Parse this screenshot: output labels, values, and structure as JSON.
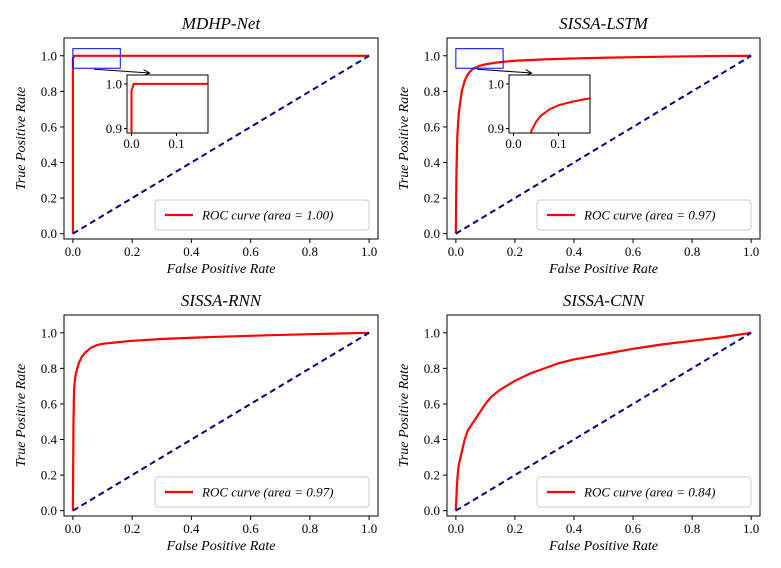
{
  "figure": {
    "legend_label_prefix": "ROC curve (area = "
  },
  "chart_data": [
    {
      "type": "line",
      "title": "MDHP-Net",
      "xlabel": "False Positive Rate",
      "ylabel": "True Positive Rate",
      "xlim": [
        -0.03,
        1.03
      ],
      "ylim": [
        -0.03,
        1.1
      ],
      "xticks": [
        0.0,
        0.2,
        0.4,
        0.6,
        0.8,
        1.0
      ],
      "xtick_labels": [
        "0.0",
        "0.2",
        "0.4",
        "0.6",
        "0.8",
        "1.0"
      ],
      "yticks": [
        0.0,
        0.2,
        0.4,
        0.6,
        0.8,
        1.0
      ],
      "ytick_labels": [
        "0.0",
        "0.2",
        "0.4",
        "0.6",
        "0.8",
        "1.0"
      ],
      "legend": "lower right",
      "legend_text": "ROC curve (area = 1.00)",
      "auc": "1.00",
      "series": [
        {
          "name": "ROC curve",
          "color": "#ff0000",
          "style": "solid",
          "x": [
            0.0,
            0.0,
            0.005,
            1.0
          ],
          "y": [
            0.0,
            0.985,
            1.0,
            1.0
          ]
        },
        {
          "name": "chance",
          "color": "#000080",
          "style": "dashed",
          "x": [
            0.0,
            1.0
          ],
          "y": [
            0.0,
            1.0
          ]
        }
      ],
      "inset": {
        "xlim": [
          -0.01,
          0.17
        ],
        "ylim": [
          0.89,
          1.02
        ],
        "xticks": [
          0.0,
          0.1
        ],
        "xtick_labels": [
          "0.0",
          "0.1"
        ],
        "yticks": [
          0.9,
          1.0
        ],
        "ytick_labels": [
          "0.9",
          "1.0"
        ],
        "zoom_box": {
          "x": [
            0.0,
            0.16
          ],
          "y": [
            0.93,
            1.04
          ]
        }
      }
    },
    {
      "type": "line",
      "title": "SISSA-LSTM",
      "xlabel": "False Positive Rate",
      "ylabel": "True Positive Rate",
      "xlim": [
        -0.03,
        1.03
      ],
      "ylim": [
        -0.03,
        1.1
      ],
      "xticks": [
        0.0,
        0.2,
        0.4,
        0.6,
        0.8,
        1.0
      ],
      "xtick_labels": [
        "0.0",
        "0.2",
        "0.4",
        "0.6",
        "0.8",
        "1.0"
      ],
      "yticks": [
        0.0,
        0.2,
        0.4,
        0.6,
        0.8,
        1.0
      ],
      "ytick_labels": [
        "0.0",
        "0.2",
        "0.4",
        "0.6",
        "0.8",
        "1.0"
      ],
      "legend": "lower right",
      "legend_text": "ROC curve (area = 0.97)",
      "auc": "0.97",
      "series": [
        {
          "name": "ROC curve",
          "color": "#ff0000",
          "style": "solid",
          "x": [
            0.0,
            0.002,
            0.005,
            0.01,
            0.02,
            0.03,
            0.04,
            0.05,
            0.06,
            0.08,
            0.1,
            0.13,
            0.16,
            0.2,
            0.3,
            0.4,
            0.5,
            0.6,
            0.7,
            0.8,
            0.9,
            1.0
          ],
          "y": [
            0.0,
            0.35,
            0.55,
            0.68,
            0.8,
            0.86,
            0.895,
            0.915,
            0.928,
            0.943,
            0.952,
            0.96,
            0.966,
            0.972,
            0.98,
            0.985,
            0.989,
            0.992,
            0.995,
            0.997,
            0.999,
            1.0
          ]
        },
        {
          "name": "chance",
          "color": "#000080",
          "style": "dashed",
          "x": [
            0.0,
            1.0
          ],
          "y": [
            0.0,
            1.0
          ]
        }
      ],
      "inset": {
        "xlim": [
          -0.01,
          0.17
        ],
        "ylim": [
          0.89,
          1.02
        ],
        "xticks": [
          0.0,
          0.1
        ],
        "xtick_labels": [
          "0.0",
          "0.1"
        ],
        "yticks": [
          0.9,
          1.0
        ],
        "ytick_labels": [
          "0.9",
          "1.0"
        ],
        "zoom_box": {
          "x": [
            0.0,
            0.16
          ],
          "y": [
            0.93,
            1.04
          ]
        }
      }
    },
    {
      "type": "line",
      "title": "SISSA-RNN",
      "xlabel": "False Positive Rate",
      "ylabel": "True Positive Rate",
      "xlim": [
        -0.03,
        1.03
      ],
      "ylim": [
        -0.03,
        1.1
      ],
      "xticks": [
        0.0,
        0.2,
        0.4,
        0.6,
        0.8,
        1.0
      ],
      "xtick_labels": [
        "0.0",
        "0.2",
        "0.4",
        "0.6",
        "0.8",
        "1.0"
      ],
      "yticks": [
        0.0,
        0.2,
        0.4,
        0.6,
        0.8,
        1.0
      ],
      "ytick_labels": [
        "0.0",
        "0.2",
        "0.4",
        "0.6",
        "0.8",
        "1.0"
      ],
      "legend": "lower right",
      "legend_text": "ROC curve (area = 0.97)",
      "auc": "0.97",
      "series": [
        {
          "name": "ROC curve",
          "color": "#ff0000",
          "style": "solid",
          "x": [
            0.0,
            0.002,
            0.004,
            0.007,
            0.01,
            0.015,
            0.02,
            0.03,
            0.04,
            0.05,
            0.06,
            0.08,
            0.1,
            0.15,
            0.2,
            0.3,
            0.4,
            0.5,
            0.6,
            0.7,
            0.8,
            0.9,
            1.0
          ],
          "y": [
            0.0,
            0.5,
            0.68,
            0.74,
            0.77,
            0.8,
            0.83,
            0.865,
            0.885,
            0.9,
            0.915,
            0.93,
            0.938,
            0.947,
            0.955,
            0.965,
            0.972,
            0.978,
            0.983,
            0.988,
            0.992,
            0.996,
            1.0
          ]
        },
        {
          "name": "chance",
          "color": "#000080",
          "style": "dashed",
          "x": [
            0.0,
            1.0
          ],
          "y": [
            0.0,
            1.0
          ]
        }
      ]
    },
    {
      "type": "line",
      "title": "SISSA-CNN",
      "xlabel": "False Positive Rate",
      "ylabel": "True Positive Rate",
      "xlim": [
        -0.03,
        1.03
      ],
      "ylim": [
        -0.03,
        1.1
      ],
      "xticks": [
        0.0,
        0.2,
        0.4,
        0.6,
        0.8,
        1.0
      ],
      "xtick_labels": [
        "0.0",
        "0.2",
        "0.4",
        "0.6",
        "0.8",
        "1.0"
      ],
      "yticks": [
        0.0,
        0.2,
        0.4,
        0.6,
        0.8,
        1.0
      ],
      "ytick_labels": [
        "0.0",
        "0.2",
        "0.4",
        "0.6",
        "0.8",
        "1.0"
      ],
      "legend": "lower right",
      "legend_text": "ROC curve (area = 0.84)",
      "auc": "0.84",
      "series": [
        {
          "name": "ROC curve",
          "color": "#ff0000",
          "style": "solid",
          "x": [
            0.0,
            0.003,
            0.006,
            0.01,
            0.02,
            0.03,
            0.04,
            0.06,
            0.08,
            0.1,
            0.12,
            0.15,
            0.2,
            0.25,
            0.3,
            0.35,
            0.4,
            0.5,
            0.6,
            0.7,
            0.8,
            0.9,
            1.0
          ],
          "y": [
            0.0,
            0.12,
            0.2,
            0.26,
            0.33,
            0.4,
            0.45,
            0.5,
            0.55,
            0.6,
            0.64,
            0.68,
            0.73,
            0.77,
            0.8,
            0.83,
            0.85,
            0.88,
            0.91,
            0.935,
            0.955,
            0.975,
            1.0
          ]
        },
        {
          "name": "chance",
          "color": "#000080",
          "style": "dashed",
          "x": [
            0.0,
            1.0
          ],
          "y": [
            0.0,
            1.0
          ]
        }
      ]
    }
  ]
}
